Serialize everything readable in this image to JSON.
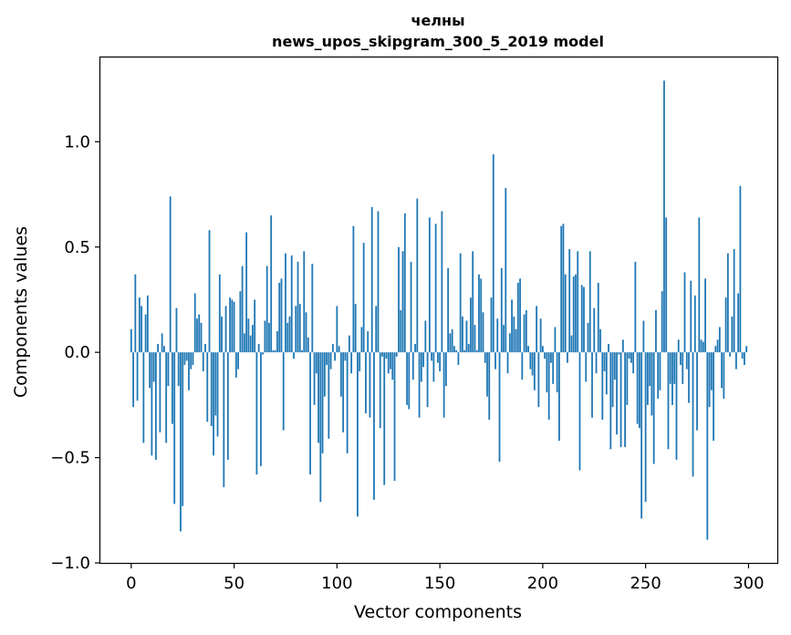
{
  "chart_data": {
    "type": "bar",
    "title_line1": "челны",
    "title_line2": "news_upos_skipgram_300_5_2019 model",
    "xlabel": "Vector components",
    "ylabel": "Components values",
    "xlim": [
      -15,
      314
    ],
    "ylim": [
      -1.0,
      1.4
    ],
    "xticks": [
      0,
      50,
      100,
      150,
      200,
      250,
      300
    ],
    "yticks": [
      -1.0,
      -0.5,
      0.0,
      0.5,
      1.0
    ],
    "xtick_labels": [
      "0",
      "50",
      "100",
      "150",
      "200",
      "250",
      "300"
    ],
    "ytick_labels": [
      "−1.0",
      "−0.5",
      "0.0",
      "0.5",
      "1.0"
    ],
    "grid": false,
    "bar_color": "#1f77b4",
    "values": [
      0.11,
      -0.26,
      0.37,
      -0.23,
      0.26,
      0.22,
      -0.43,
      0.18,
      0.27,
      -0.17,
      -0.49,
      -0.14,
      -0.51,
      0.04,
      -0.38,
      0.09,
      0.03,
      -0.43,
      -0.16,
      0.74,
      -0.34,
      -0.72,
      0.21,
      -0.16,
      -0.85,
      -0.73,
      -0.06,
      -0.04,
      -0.18,
      -0.08,
      -0.06,
      0.28,
      0.16,
      0.18,
      0.14,
      -0.09,
      0.04,
      -0.33,
      0.58,
      -0.35,
      -0.49,
      -0.3,
      -0.4,
      0.37,
      0.17,
      -0.64,
      0.22,
      -0.51,
      0.26,
      0.25,
      0.24,
      -0.12,
      -0.08,
      0.29,
      0.41,
      0.09,
      0.57,
      0.16,
      0.08,
      0.13,
      0.25,
      -0.58,
      0.04,
      -0.54,
      -0.01,
      0.15,
      0.41,
      0.14,
      0.65,
      0.01,
      0.01,
      0.1,
      0.33,
      0.35,
      -0.37,
      0.47,
      0.14,
      0.17,
      0.46,
      -0.03,
      0.22,
      0.43,
      0.23,
      0.01,
      0.48,
      0.19,
      0.07,
      -0.58,
      0.42,
      -0.25,
      -0.1,
      -0.43,
      -0.71,
      -0.48,
      -0.21,
      -0.06,
      -0.41,
      -0.08,
      0.04,
      -0.04,
      0.22,
      0.03,
      -0.21,
      -0.38,
      -0.04,
      -0.48,
      0.08,
      -0.1,
      0.6,
      0.23,
      -0.78,
      -0.09,
      0.12,
      0.52,
      -0.29,
      0.1,
      -0.31,
      0.69,
      -0.7,
      0.22,
      0.67,
      -0.36,
      -0.02,
      -0.63,
      -0.03,
      -0.1,
      -0.08,
      -0.13,
      -0.61,
      -0.02,
      0.5,
      0.2,
      0.48,
      0.66,
      -0.25,
      -0.27,
      0.43,
      -0.13,
      0.04,
      0.73,
      -0.31,
      -0.14,
      -0.07,
      0.15,
      -0.26,
      0.64,
      -0.04,
      -0.14,
      0.61,
      -0.05,
      -0.09,
      0.67,
      -0.31,
      -0.16,
      0.4,
      0.09,
      0.11,
      0.03,
      0.01,
      -0.06,
      0.47,
      0.17,
      0.01,
      0.15,
      0.04,
      0.26,
      0.48,
      0.13,
      0.01,
      0.37,
      0.35,
      0.19,
      -0.05,
      -0.21,
      -0.32,
      0.26,
      0.94,
      -0.08,
      0.16,
      -0.52,
      0.4,
      0.13,
      0.78,
      -0.1,
      0.09,
      0.25,
      0.17,
      0.11,
      0.33,
      0.35,
      -0.13,
      0.18,
      0.2,
      0.03,
      -0.08,
      -0.11,
      -0.18,
      0.22,
      -0.26,
      0.16,
      0.03,
      -0.03,
      -0.19,
      -0.32,
      -0.05,
      -0.15,
      0.12,
      -0.19,
      -0.42,
      0.6,
      0.61,
      0.37,
      -0.05,
      0.49,
      0.08,
      0.36,
      0.37,
      0.48,
      -0.56,
      0.32,
      0.31,
      -0.14,
      0.14,
      0.48,
      -0.31,
      0.21,
      -0.1,
      0.33,
      0.11,
      -0.32,
      -0.09,
      -0.2,
      0.04,
      -0.46,
      -0.26,
      -0.13,
      -0.39,
      -0.01,
      -0.45,
      0.06,
      -0.45,
      -0.25,
      -0.03,
      -0.05,
      -0.1,
      0.43,
      -0.34,
      -0.36,
      -0.79,
      0.15,
      -0.71,
      -0.25,
      -0.16,
      -0.3,
      -0.53,
      0.2,
      -0.22,
      -0.18,
      0.29,
      1.29,
      0.64,
      -0.46,
      -0.15,
      -0.25,
      -0.15,
      -0.51,
      0.06,
      -0.06,
      -0.15,
      0.38,
      -0.08,
      -0.24,
      0.34,
      -0.59,
      0.27,
      -0.37,
      0.64,
      0.06,
      0.05,
      0.35,
      -0.89,
      -0.26,
      -0.18,
      -0.42,
      0.03,
      0.06,
      0.12,
      -0.17,
      -0.22,
      0.26,
      0.47,
      -0.02,
      0.17,
      0.49,
      -0.08,
      0.28,
      0.79,
      -0.03,
      -0.06,
      0.03
    ]
  }
}
